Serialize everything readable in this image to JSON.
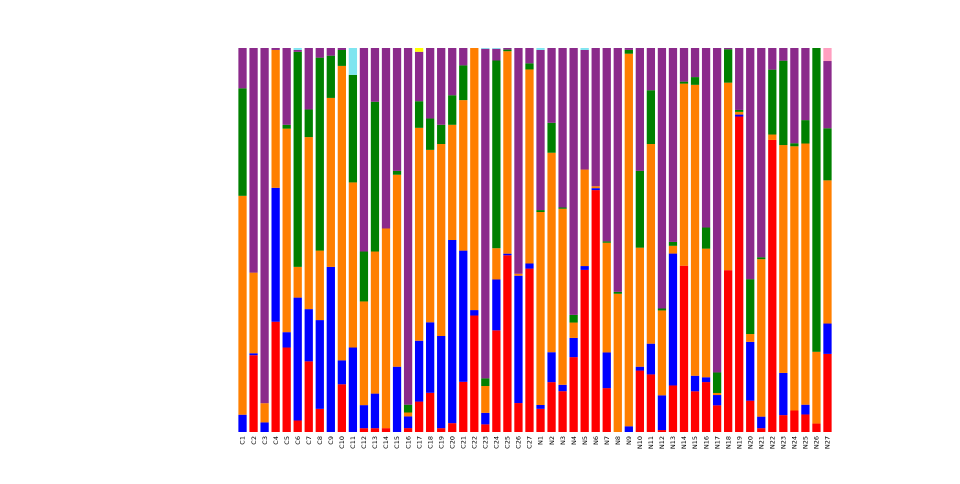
{
  "chart_data": {
    "type": "bar",
    "stacked": true,
    "normalized": true,
    "ylim": [
      0,
      1
    ],
    "categories": [
      "C1",
      "C2",
      "C3",
      "C4",
      "C5",
      "C6",
      "C7",
      "C8",
      "C9",
      "C10",
      "C11",
      "C12",
      "C13",
      "C14",
      "C15",
      "C16",
      "C17",
      "C18",
      "C19",
      "C20",
      "C21",
      "C22",
      "C23",
      "C24",
      "C25",
      "C26",
      "C27",
      "N1",
      "N2",
      "N3",
      "N4",
      "N5",
      "N6",
      "N7",
      "N8",
      "N9",
      "N10",
      "N11",
      "N12",
      "N13",
      "N14",
      "N15",
      "N16",
      "N17",
      "N18",
      "N19",
      "N20",
      "N21",
      "N22",
      "N23",
      "N24",
      "N25",
      "N26",
      "N27"
    ],
    "colors": [
      "#ff0000",
      "#0000ff",
      "#ff7f00",
      "#008000",
      "#8b2a8b",
      "#7fe5f0",
      "#ffff00",
      "#ff9fc0"
    ],
    "series": [
      {
        "values": [
          0,
          0.2,
          0,
          0.28,
          0.22,
          0.03,
          0.23,
          0.06,
          0,
          0.12,
          0,
          0.01,
          0.01,
          0.01,
          0,
          0.01,
          0.08,
          0.1,
          0.01,
          0.03,
          0.13,
          0.32,
          0.02,
          0.26,
          0.55,
          0.075,
          0.16,
          0.06,
          0.1,
          0.16,
          0.195,
          0.42,
          0.63,
          0.16,
          0,
          0,
          0.16,
          0.15,
          0.005,
          0.12,
          0.42,
          0.105,
          0.26,
          0.065,
          0.63,
          0.815,
          0.08,
          0.01,
          0.27,
          0.02,
          0.035,
          0.045,
          0.02,
          0.18
        ]
      },
      {
        "values": [
          0.045,
          0.005,
          0.025,
          0.34,
          0.04,
          0.32,
          0.17,
          0.23,
          0.43,
          0.06,
          0.22,
          0.06,
          0.09,
          0,
          0.17,
          0.03,
          0.16,
          0.18,
          0.24,
          0.62,
          0.34,
          0.015,
          0.03,
          0.13,
          0.005,
          0.33,
          0.005,
          0.01,
          0.06,
          0.025,
          0.05,
          0.01,
          0.005,
          0.13,
          0,
          0.015,
          0.01,
          0.08,
          0.09,
          0.34,
          0,
          0.04,
          0.025,
          0.025,
          0,
          0.005,
          0.15,
          0.03,
          0,
          0.05,
          0,
          0.025,
          0,
          0.07
        ]
      },
      {
        "values": [
          0.57,
          0.21,
          0.05,
          0.35,
          0.53,
          0.08,
          0.56,
          0.18,
          0.44,
          0.74,
          0.43,
          0.27,
          0.37,
          0.52,
          0.5,
          0.01,
          0.56,
          0.44,
          0.5,
          0.39,
          0.39,
          0.72,
          0.07,
          0.08,
          0.63,
          0.005,
          0.19,
          0.5,
          0.4,
          0.69,
          0.04,
          0.25,
          0.005,
          0.4,
          0.36,
          0.98,
          0.31,
          0.52,
          0.22,
          0.02,
          0.46,
          0.75,
          0.67,
          0.005,
          0.73,
          0.007,
          0.02,
          0.41,
          0.005,
          0.27,
          0.43,
          0.67,
          0.17,
          0.33
        ]
      },
      {
        "values": [
          0.28,
          0,
          0,
          0,
          0.01,
          0.56,
          0.09,
          0.5,
          0.11,
          0.04,
          0.28,
          0.13,
          0.39,
          0,
          0.01,
          0.02,
          0.07,
          0.08,
          0.05,
          0.1,
          0.09,
          0,
          0.02,
          0.48,
          0.005,
          0,
          0.006,
          0.005,
          0.06,
          0.005,
          0.02,
          0,
          0,
          0.005,
          0.005,
          0.01,
          0.2,
          0.14,
          0.005,
          0.01,
          0.005,
          0.02,
          0.11,
          0.05,
          0.13,
          0.005,
          0.14,
          0.005,
          0.06,
          0.1,
          0.005,
          0.06,
          0.72,
          0.12
        ]
      },
      {
        "values": [
          0.105,
          0.585,
          0.925,
          0.005,
          0.2,
          0.005,
          0.2,
          0.025,
          0.02,
          0.005,
          0,
          0.53,
          0.14,
          0.47,
          0.32,
          0.915,
          0.13,
          0.18,
          0.2,
          0.16,
          0.045,
          0,
          0.86,
          0.03,
          0.005,
          0.585,
          0.015,
          0.415,
          0.15,
          0.625,
          0.695,
          0.31,
          0.36,
          0.705,
          0.635,
          0.005,
          0.32,
          0.11,
          0.675,
          0.5,
          0.085,
          0.075,
          0.935,
          0.79,
          0.005,
          0.16,
          0.59,
          0.545,
          0.02,
          0.015,
          0.155,
          0.185,
          0,
          0.155
        ]
      },
      {
        "values": [
          0,
          0,
          0,
          0,
          0,
          0.005,
          0,
          0,
          0,
          0,
          0.07,
          0,
          0,
          0,
          0,
          0,
          0,
          0,
          0,
          0,
          0,
          0,
          0.002,
          0.002,
          0,
          0,
          0,
          0.005,
          0,
          0,
          0,
          0.005,
          0,
          0,
          0,
          0,
          0,
          0,
          0,
          0,
          0,
          0,
          0,
          0,
          0,
          0,
          0,
          0,
          0,
          0,
          0,
          0,
          0,
          0
        ]
      },
      {
        "values": [
          0,
          0,
          0,
          0,
          0,
          0,
          0,
          0,
          0,
          0,
          0,
          0,
          0,
          0,
          0,
          0,
          0.01,
          0,
          0,
          0,
          0,
          0,
          0,
          0,
          0,
          0,
          0,
          0,
          0,
          0,
          0,
          0,
          0,
          0,
          0,
          0,
          0,
          0,
          0,
          0,
          0,
          0,
          0,
          0,
          0,
          0,
          0,
          0,
          0,
          0,
          0,
          0,
          0,
          0
        ]
      },
      {
        "values": [
          0,
          0,
          0,
          0,
          0,
          0,
          0,
          0,
          0,
          0,
          0,
          0,
          0,
          0,
          0,
          0,
          0,
          0,
          0,
          0,
          0,
          0,
          0,
          0,
          0,
          0,
          0,
          0,
          0,
          0,
          0,
          0,
          0,
          0,
          0,
          0,
          0,
          0,
          0,
          0,
          0,
          0,
          0,
          0,
          0,
          0,
          0,
          0,
          0,
          0,
          0,
          0,
          0,
          0.03
        ]
      }
    ]
  }
}
